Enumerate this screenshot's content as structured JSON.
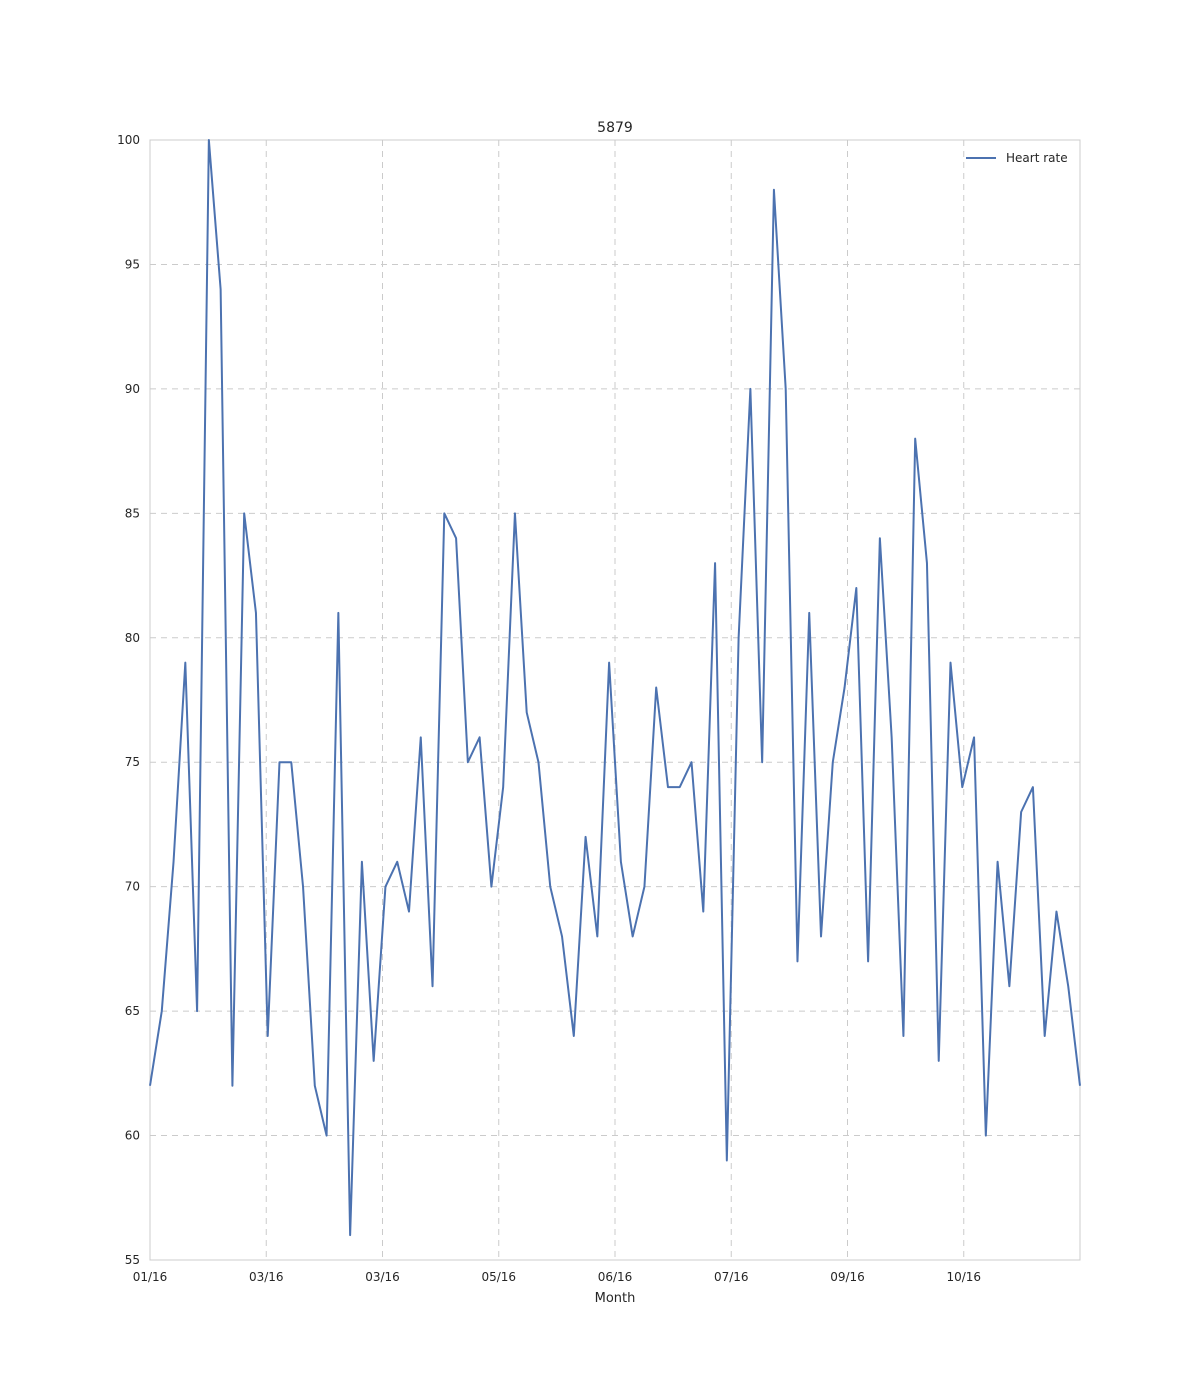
{
  "chart_data": {
    "type": "line",
    "title": "5879",
    "xlabel": "Month",
    "ylabel": "",
    "ylim": [
      55,
      100
    ],
    "yticks": [
      55,
      60,
      65,
      70,
      75,
      80,
      85,
      90,
      95,
      100
    ],
    "xticks": [
      "01/16",
      "03/16",
      "03/16",
      "05/16",
      "06/16",
      "07/16",
      "09/16",
      "10/16"
    ],
    "grid": true,
    "legend_position": "top-right",
    "series": [
      {
        "name": "Heart rate",
        "color": "#4c72b0",
        "values": [
          62,
          65,
          71,
          79,
          65,
          100,
          94,
          62,
          85,
          81,
          64,
          75,
          75,
          70,
          62,
          60,
          81,
          56,
          71,
          63,
          70,
          71,
          69,
          76,
          66,
          85,
          84,
          75,
          76,
          70,
          74,
          85,
          77,
          75,
          70,
          68,
          64,
          72,
          68,
          79,
          71,
          68,
          70,
          78,
          74,
          74,
          75,
          69,
          83,
          59,
          80,
          90,
          75,
          98,
          90,
          67,
          81,
          68,
          75,
          78,
          82,
          67,
          84,
          76,
          64,
          88,
          83,
          63,
          79,
          74,
          76,
          60,
          71,
          66,
          73,
          74,
          64,
          69,
          66,
          62
        ]
      }
    ]
  }
}
